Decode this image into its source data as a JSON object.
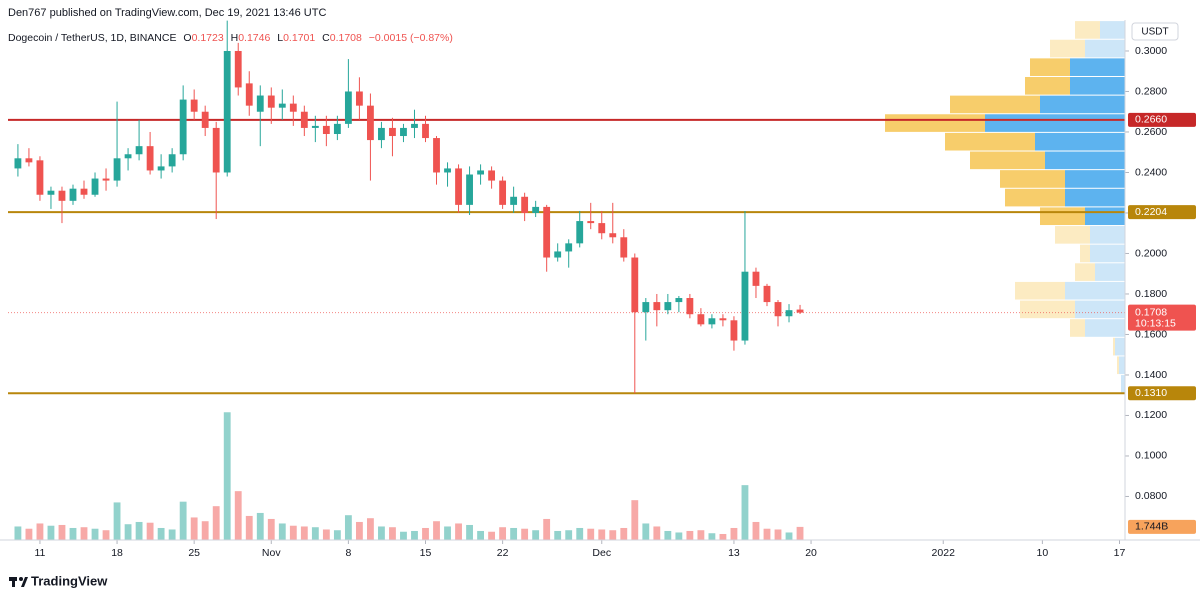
{
  "chart_data": {
    "type": "candlestick",
    "attribution": "Den767 published on TradingView.com, Dec 19, 2021 13:46 UTC",
    "symbol": "Dogecoin / TetherUS, 1D, BINANCE",
    "ohlc": [
      {
        "label": "O",
        "value": 0.1723
      },
      {
        "label": "H",
        "value": 0.1746
      },
      {
        "label": "L",
        "value": 0.1701
      },
      {
        "label": "C",
        "value": 0.1708
      }
    ],
    "change": "−0.0015 (−0.87%)",
    "currency": "USDT",
    "brand": "TradingView",
    "up_color": "#26a69a",
    "down_color": "#ef5350",
    "x": [
      -2,
      -1,
      0,
      1,
      2,
      3,
      4,
      5,
      6,
      7,
      8,
      9,
      10,
      11,
      12,
      13,
      14,
      15,
      16,
      17,
      18,
      19,
      20,
      21,
      22,
      23,
      24,
      25,
      26,
      27,
      28,
      29,
      30,
      31,
      32,
      33,
      34,
      35,
      36,
      37,
      38,
      39,
      40,
      41,
      42,
      43,
      44,
      45,
      46,
      47,
      48,
      49,
      50,
      51,
      52,
      53,
      54,
      55,
      56,
      57,
      58,
      59,
      60,
      61,
      62,
      63,
      64,
      65,
      66,
      67,
      68,
      69
    ],
    "open": [
      0.242,
      0.247,
      0.246,
      0.229,
      0.231,
      0.226,
      0.232,
      0.229,
      0.237,
      0.236,
      0.247,
      0.249,
      0.253,
      0.241,
      0.243,
      0.249,
      0.276,
      0.27,
      0.262,
      0.24,
      0.3,
      0.284,
      0.27,
      0.278,
      0.272,
      0.274,
      0.27,
      0.262,
      0.263,
      0.259,
      0.264,
      0.28,
      0.273,
      0.256,
      0.262,
      0.258,
      0.262,
      0.264,
      0.257,
      0.24,
      0.242,
      0.224,
      0.239,
      0.241,
      0.236,
      0.224,
      0.228,
      0.22,
      0.223,
      0.198,
      0.201,
      0.205,
      0.216,
      0.215,
      0.21,
      0.208,
      0.198,
      0.171,
      0.176,
      0.172,
      0.176,
      0.178,
      0.17,
      0.165,
      0.168,
      0.167,
      0.157,
      0.191,
      0.184,
      0.176,
      0.169,
      0.1723
    ],
    "high": [
      0.254,
      0.252,
      0.248,
      0.233,
      0.233,
      0.234,
      0.236,
      0.24,
      0.242,
      0.275,
      0.252,
      0.266,
      0.26,
      0.249,
      0.252,
      0.283,
      0.281,
      0.273,
      0.265,
      0.315,
      0.304,
      0.29,
      0.283,
      0.282,
      0.281,
      0.278,
      0.273,
      0.268,
      0.268,
      0.268,
      0.296,
      0.287,
      0.279,
      0.265,
      0.267,
      0.264,
      0.271,
      0.268,
      0.258,
      0.245,
      0.244,
      0.243,
      0.244,
      0.243,
      0.238,
      0.233,
      0.23,
      0.226,
      0.224,
      0.205,
      0.207,
      0.221,
      0.225,
      0.221,
      0.225,
      0.212,
      0.2,
      0.178,
      0.18,
      0.18,
      0.179,
      0.18,
      0.173,
      0.17,
      0.17,
      0.169,
      0.221,
      0.193,
      0.185,
      0.177,
      0.175,
      0.1746
    ],
    "low": [
      0.238,
      0.243,
      0.226,
      0.222,
      0.215,
      0.224,
      0.227,
      0.228,
      0.231,
      0.233,
      0.241,
      0.246,
      0.239,
      0.237,
      0.24,
      0.246,
      0.266,
      0.258,
      0.217,
      0.238,
      0.278,
      0.268,
      0.253,
      0.264,
      0.266,
      0.263,
      0.258,
      0.255,
      0.253,
      0.256,
      0.262,
      0.266,
      0.236,
      0.252,
      0.248,
      0.255,
      0.257,
      0.255,
      0.234,
      0.233,
      0.22,
      0.219,
      0.234,
      0.232,
      0.222,
      0.22,
      0.216,
      0.218,
      0.191,
      0.196,
      0.193,
      0.203,
      0.212,
      0.207,
      0.205,
      0.196,
      0.131,
      0.157,
      0.164,
      0.17,
      0.171,
      0.168,
      0.164,
      0.163,
      0.164,
      0.152,
      0.155,
      0.178,
      0.174,
      0.164,
      0.166,
      0.1701
    ],
    "close": [
      0.247,
      0.245,
      0.229,
      0.231,
      0.226,
      0.232,
      0.229,
      0.237,
      0.236,
      0.247,
      0.249,
      0.253,
      0.241,
      0.243,
      0.249,
      0.276,
      0.27,
      0.262,
      0.24,
      0.3,
      0.282,
      0.273,
      0.278,
      0.272,
      0.274,
      0.27,
      0.262,
      0.263,
      0.259,
      0.264,
      0.28,
      0.273,
      0.256,
      0.262,
      0.258,
      0.262,
      0.264,
      0.257,
      0.24,
      0.242,
      0.224,
      0.239,
      0.241,
      0.236,
      0.224,
      0.228,
      0.22,
      0.223,
      0.198,
      0.201,
      0.205,
      0.216,
      0.215,
      0.21,
      0.208,
      0.198,
      0.171,
      0.176,
      0.172,
      0.176,
      0.178,
      0.17,
      0.165,
      0.168,
      0.167,
      0.157,
      0.191,
      0.184,
      0.176,
      0.169,
      0.172,
      0.1708
    ],
    "volume": [
      1.8,
      1.5,
      2.2,
      1.9,
      2.0,
      1.6,
      1.7,
      1.5,
      1.3,
      5.0,
      2.1,
      2.4,
      2.3,
      1.6,
      1.4,
      5.1,
      3.0,
      2.5,
      4.5,
      17.0,
      6.5,
      3.2,
      3.6,
      2.8,
      2.2,
      1.9,
      1.8,
      1.7,
      1.4,
      1.3,
      3.3,
      2.4,
      2.9,
      1.8,
      1.7,
      1.1,
      1.2,
      1.6,
      2.5,
      1.8,
      2.2,
      2.0,
      1.2,
      1.1,
      1.7,
      1.6,
      1.5,
      1.3,
      2.8,
      1.2,
      1.3,
      1.6,
      1.5,
      1.4,
      1.3,
      1.6,
      5.3,
      2.2,
      1.8,
      1.2,
      1.0,
      1.2,
      1.3,
      0.9,
      0.8,
      1.6,
      7.3,
      2.4,
      1.5,
      1.4,
      1.0,
      1.744
    ],
    "volume_label": "1.744B",
    "volume_ylim": [
      0,
      17.3
    ],
    "xlim": [
      -2.9,
      98.5
    ],
    "xticks": [
      {
        "value": 0,
        "label": "11"
      },
      {
        "value": 7,
        "label": "18"
      },
      {
        "value": 14,
        "label": "25"
      },
      {
        "value": 21,
        "label": "Nov"
      },
      {
        "value": 28,
        "label": "8"
      },
      {
        "value": 35,
        "label": "15"
      },
      {
        "value": 42,
        "label": "22"
      },
      {
        "value": 51,
        "label": "Dec"
      },
      {
        "value": 63,
        "label": "13"
      },
      {
        "value": 70,
        "label": "20"
      },
      {
        "value": 82,
        "label": "2022"
      },
      {
        "value": 91,
        "label": "10"
      },
      {
        "value": 98,
        "label": "17"
      }
    ],
    "ylim": [
      0.0585,
      0.3153
    ],
    "yticks": [
      {
        "value": 0.08,
        "label": "0.0800"
      },
      {
        "value": 0.1,
        "label": "0.1000"
      },
      {
        "value": 0.12,
        "label": "0.1200"
      },
      {
        "value": 0.14,
        "label": "0.1400"
      },
      {
        "value": 0.16,
        "label": "0.1600"
      },
      {
        "value": 0.18,
        "label": "0.1800"
      },
      {
        "value": 0.2,
        "label": "0.2000"
      },
      {
        "value": 0.22,
        "label": "0.2200"
      },
      {
        "value": 0.24,
        "label": "0.2400"
      },
      {
        "value": 0.26,
        "label": "0.2600"
      },
      {
        "value": 0.28,
        "label": "0.2800"
      },
      {
        "value": 0.3,
        "label": "0.3000"
      }
    ],
    "grid": false,
    "levels": [
      {
        "value": 0.266,
        "label": "0.2660",
        "color": "#c62828"
      },
      {
        "value": 0.2204,
        "label": "0.2204",
        "color": "#b8860b"
      },
      {
        "value": 0.131,
        "label": "0.1310",
        "color": "#b8860b"
      }
    ],
    "last_price": {
      "value": 0.1708,
      "label": "0.1708",
      "countdown": "10:13:15"
    },
    "profile": {
      "bins": [
        0.131,
        0.1402,
        0.1494,
        0.1586,
        0.1678,
        0.177,
        0.1862,
        0.1954,
        0.2046,
        0.2138,
        0.223,
        0.2322,
        0.2414,
        0.2506,
        0.2598,
        0.269,
        0.2782,
        0.2874,
        0.2966,
        0.3058,
        0.315
      ],
      "up": [
        1,
        1.5,
        2.5,
        10,
        12.5,
        15,
        7.5,
        8.75,
        8.75,
        10,
        15,
        15,
        20,
        22.5,
        35,
        21.25,
        13.75,
        13.75,
        10,
        6.25
      ],
      "down": [
        0,
        0.5,
        0.5,
        3.75,
        13.75,
        12.5,
        5,
        2.5,
        8.75,
        11.25,
        15,
        16.25,
        18.75,
        22.5,
        25,
        22.5,
        11.25,
        10,
        8.75,
        6.25
      ],
      "xlim": [
        0,
        60
      ],
      "value_area": [
        0.2138,
        0.2966
      ],
      "up_color": "#5db3ef",
      "down_color": "#f7cd6b",
      "up_color_light": "#cde6f8",
      "down_color_light": "#fcebc2"
    }
  }
}
